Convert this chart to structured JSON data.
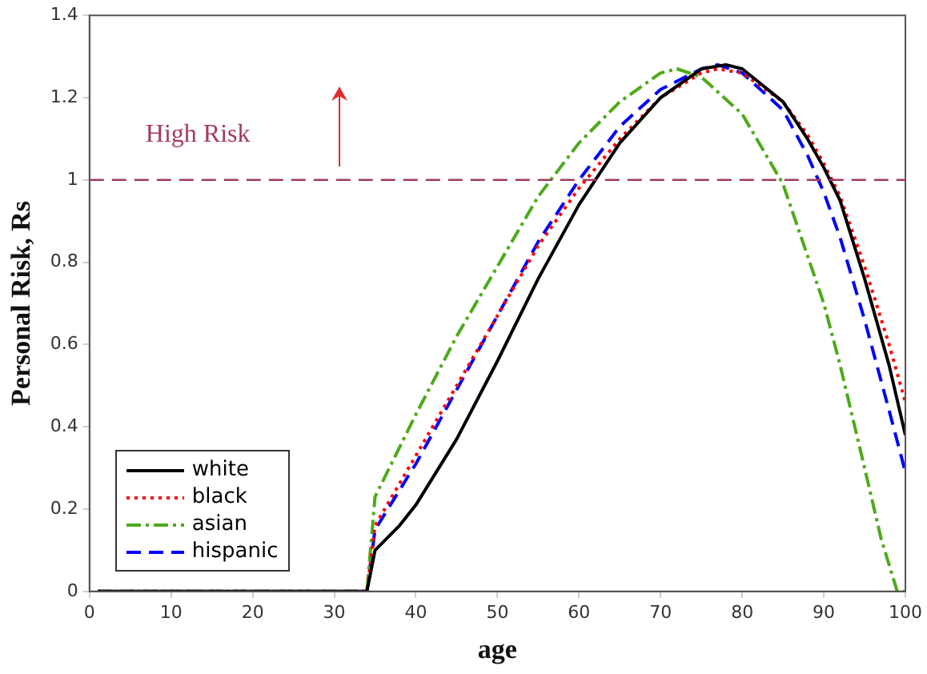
{
  "chart_data": {
    "type": "line",
    "xlabel": "age",
    "ylabel": "Personal Risk, Rs",
    "xlim": [
      0,
      100
    ],
    "xticks": [
      0,
      10,
      20,
      30,
      40,
      50,
      60,
      70,
      80,
      90,
      100
    ],
    "ylim": [
      0,
      1.4
    ],
    "yticks": [
      0,
      0.2,
      0.4,
      0.6,
      0.8,
      1,
      1.2,
      1.4
    ],
    "grid": false,
    "legend": "bottom left",
    "marker": "none",
    "ref_lines": [
      {
        "axis": "y",
        "value": 1,
        "label": "High Risk",
        "color": "#a33a5e",
        "line_style": "dashed"
      }
    ],
    "series": [
      {
        "name": "white",
        "color": "#000000",
        "line_style": "solid",
        "x": [
          1,
          34,
          35,
          38,
          40,
          45,
          50,
          55,
          60,
          62,
          65,
          70,
          75,
          78,
          80,
          85,
          88,
          90,
          92,
          95,
          98,
          100
        ],
        "values": [
          0,
          0,
          0.1,
          0.16,
          0.21,
          0.37,
          0.56,
          0.76,
          0.94,
          1.0,
          1.09,
          1.2,
          1.27,
          1.28,
          1.27,
          1.19,
          1.1,
          1.03,
          0.95,
          0.76,
          0.55,
          0.38
        ]
      },
      {
        "name": "black",
        "color": "#ff0000",
        "line_style": "dotted",
        "x": [
          1,
          34,
          35,
          40,
          45,
          50,
          55,
          60,
          65,
          70,
          75,
          77,
          80,
          85,
          88,
          90,
          92,
          95,
          98,
          100
        ],
        "values": [
          0,
          0,
          0.16,
          0.33,
          0.5,
          0.67,
          0.84,
          0.98,
          1.1,
          1.2,
          1.26,
          1.27,
          1.26,
          1.19,
          1.11,
          1.04,
          0.96,
          0.79,
          0.6,
          0.46
        ]
      },
      {
        "name": "asian",
        "color": "#4daa1a",
        "line_style": "dashdot",
        "x": [
          1,
          34,
          35,
          40,
          45,
          50,
          55,
          60,
          65,
          70,
          72,
          75,
          80,
          85,
          90,
          92,
          95,
          97,
          99,
          100
        ],
        "values": [
          0,
          0,
          0.23,
          0.43,
          0.62,
          0.79,
          0.96,
          1.09,
          1.19,
          1.26,
          1.27,
          1.25,
          1.16,
          0.99,
          0.7,
          0.55,
          0.3,
          0.13,
          0,
          0
        ]
      },
      {
        "name": "hispanic",
        "color": "#0000ff",
        "line_style": "dashed",
        "x": [
          1,
          34,
          35,
          40,
          45,
          50,
          55,
          60,
          65,
          70,
          75,
          77,
          80,
          85,
          88,
          90,
          92,
          95,
          98,
          100
        ],
        "values": [
          0,
          0,
          0.15,
          0.31,
          0.49,
          0.67,
          0.85,
          1.0,
          1.13,
          1.22,
          1.27,
          1.28,
          1.26,
          1.17,
          1.06,
          0.97,
          0.86,
          0.66,
          0.44,
          0.29
        ]
      }
    ]
  }
}
